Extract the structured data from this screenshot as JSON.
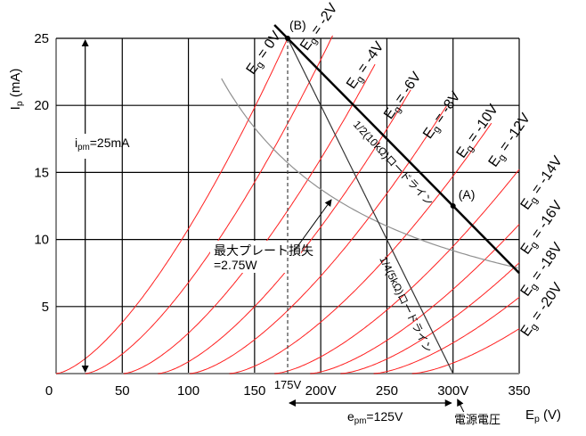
{
  "chart_data": {
    "type": "line",
    "title": "",
    "xlabel": "E",
    "xlabel_sub": "p",
    "xlabel_unit": " (V)",
    "ylabel": "I",
    "ylabel_sub": "p",
    "ylabel_unit": " (mA)",
    "xlim": [
      0,
      350
    ],
    "ylim": [
      0,
      25
    ],
    "grid": true,
    "x_ticks": [
      "0",
      "50",
      "100",
      "150",
      "200V",
      "250",
      "300V",
      "350"
    ],
    "x_tick_values": [
      0,
      50,
      100,
      150,
      200,
      250,
      300,
      350
    ],
    "y_ticks": [
      "5",
      "10",
      "15",
      "20",
      "25"
    ],
    "y_tick_values": [
      5,
      10,
      15,
      20,
      25
    ],
    "grid_curves": [
      {
        "eg_label": "E",
        "eg_sub": "g",
        "eg_text": " = 0V",
        "cutoff_v": 0,
        "max_ma": 25.0
      },
      {
        "eg_label": "E",
        "eg_sub": "g",
        "eg_text": " = -2V",
        "cutoff_v": 22,
        "max_ma": 25.3
      },
      {
        "eg_label": "E",
        "eg_sub": "g",
        "eg_text": " = -4V",
        "cutoff_v": 51,
        "max_ma": 23.2
      },
      {
        "eg_label": "E",
        "eg_sub": "g",
        "eg_text": " = -6V",
        "cutoff_v": 77,
        "max_ma": 21.2
      },
      {
        "eg_label": "E",
        "eg_sub": "g",
        "eg_text": " = -8V",
        "cutoff_v": 101,
        "max_ma": 20.0
      },
      {
        "eg_label": "E",
        "eg_sub": "g",
        "eg_text": " = -10V",
        "cutoff_v": 131,
        "max_ma": 18.7
      },
      {
        "eg_label": "E",
        "eg_sub": "g",
        "eg_text": " = -12V",
        "cutoff_v": 165,
        "max_ma": 16.2
      },
      {
        "eg_label": "E",
        "eg_sub": "g",
        "eg_text": " = -14V",
        "cutoff_v": 192,
        "max_ma": 13.5
      },
      {
        "eg_label": "E",
        "eg_sub": "g",
        "eg_text": " = -16V",
        "cutoff_v": 215,
        "max_ma": 10.8
      },
      {
        "eg_label": "E",
        "eg_sub": "g",
        "eg_text": " = -18V",
        "cutoff_v": 240,
        "max_ma": 8.4
      },
      {
        "eg_label": "E",
        "eg_sub": "g",
        "eg_text": " = -20V",
        "cutoff_v": 269,
        "max_ma": 5.6
      }
    ],
    "load_lines": [
      {
        "label": "1/2(10kΩ)ロードライン",
        "from": [
          165,
          26
        ],
        "to": [
          350,
          7.5
        ]
      },
      {
        "label": "1/4(5kΩ)ロードライン",
        "from": [
          175,
          25
        ],
        "to": [
          300,
          0
        ]
      }
    ],
    "max_dissipation": {
      "label_line1": "最大プレート損失",
      "label_line2": "=2.75W",
      "watts": 2.75,
      "from_v": 125,
      "to_v": 350
    },
    "points": [
      {
        "label": "(B)",
        "x": 175,
        "y": 25
      },
      {
        "label": "(A)",
        "x": 300,
        "y": 12.5
      }
    ],
    "annotations": {
      "vline_label": "175V",
      "vline_value": 175,
      "ipm_text": "i",
      "ipm_sub": "pm",
      "ipm_value": "=25mA",
      "ipm_arrow_x": 22,
      "epm_text": "e",
      "epm_sub": "pm",
      "epm_value": "=125V",
      "supply_label": "電源電圧",
      "supply_v": 300
    },
    "colors": {
      "curves": "#ff2020",
      "load": "#000000",
      "dissipation": "#909090",
      "grid": "#000000"
    }
  }
}
